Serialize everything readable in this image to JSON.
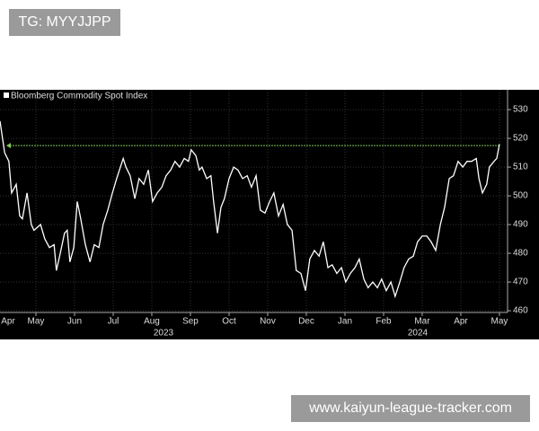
{
  "watermarks": [
    "TG: MYYJJPP",
    "www.kaiyun-league-tracker.com"
  ],
  "chart_data": {
    "type": "line",
    "background": "#000000",
    "x": [
      0.07,
      0.19,
      0.3,
      0.37,
      0.49,
      0.58,
      0.65,
      0.77,
      0.88,
      0.95,
      1.12,
      1.23,
      1.35,
      1.47,
      1.53,
      1.63,
      1.74,
      1.81,
      1.88,
      1.98,
      2.07,
      2.16,
      2.28,
      2.4,
      2.51,
      2.63,
      2.74,
      2.86,
      2.98,
      3.09,
      3.26,
      3.33,
      3.44,
      3.56,
      3.67,
      3.79,
      3.91,
      4.02,
      4.14,
      4.26,
      4.37,
      4.49,
      4.6,
      4.72,
      4.84,
      4.95,
      5.02,
      5.14,
      5.23,
      5.3,
      5.42,
      5.53,
      5.6,
      5.7,
      5.79,
      5.88,
      6.0,
      6.12,
      6.23,
      6.35,
      6.47,
      6.58,
      6.7,
      6.81,
      6.93,
      7.05,
      7.16,
      7.28,
      7.4,
      7.51,
      7.63,
      7.74,
      7.86,
      7.98,
      8.09,
      8.21,
      8.33,
      8.44,
      8.56,
      8.67,
      8.79,
      8.91,
      9.02,
      9.14,
      9.26,
      9.37,
      9.49,
      9.6,
      9.72,
      9.84,
      9.95,
      10.07,
      10.19,
      10.3,
      10.42,
      10.53,
      10.65,
      10.77,
      10.88,
      11.0,
      11.12,
      11.23,
      11.35,
      11.47,
      11.58,
      11.7,
      11.81,
      11.93,
      12.05,
      12.16,
      12.28,
      12.4,
      12.47,
      12.56,
      12.67,
      12.74,
      12.86,
      12.93,
      13.0
    ],
    "series": [
      {
        "name": "Bloomberg Commodity Spot Index",
        "color": "#ffffff",
        "values": [
          526,
          515,
          512,
          501,
          504,
          493,
          492,
          501,
          490,
          488,
          490,
          485,
          482,
          483,
          474,
          480,
          487,
          488,
          477,
          482,
          498,
          492,
          483,
          477,
          483,
          482,
          490,
          495,
          501,
          506,
          513,
          510,
          507,
          499,
          506,
          504,
          509,
          498,
          501,
          503,
          507,
          509,
          512,
          510,
          513,
          512,
          516,
          514,
          509,
          510,
          506,
          507,
          498,
          487,
          496,
          499,
          506,
          510,
          509,
          506,
          507,
          503,
          507,
          495,
          494,
          498,
          501,
          493,
          497,
          490,
          488,
          474,
          473,
          467,
          478,
          481,
          479,
          484,
          475,
          476,
          473,
          475,
          470,
          473,
          475,
          478,
          471,
          468,
          470,
          468,
          471,
          467,
          470,
          465,
          470,
          475,
          478,
          479,
          484,
          486,
          486,
          484,
          481,
          490,
          496,
          506,
          507,
          512,
          510,
          512,
          512,
          513,
          506,
          501,
          504,
          510,
          512,
          513,
          518
        ]
      }
    ],
    "reference_line": {
      "value": 517.5,
      "color": "#7ec850"
    },
    "xlim": [
      0.07,
      13.21
    ],
    "xticks": [
      {
        "value": 0,
        "label": "Apr"
      },
      {
        "value": 1,
        "label": "May"
      },
      {
        "value": 2,
        "label": "Jun"
      },
      {
        "value": 3,
        "label": "Jul"
      },
      {
        "value": 4,
        "label": "Aug"
      },
      {
        "value": 5,
        "label": "Sep"
      },
      {
        "value": 6,
        "label": "Oct"
      },
      {
        "value": 7,
        "label": "Nov"
      },
      {
        "value": 8,
        "label": "Dec"
      },
      {
        "value": 9,
        "label": "Jan"
      },
      {
        "value": 10,
        "label": "Feb"
      },
      {
        "value": 11,
        "label": "Mar"
      },
      {
        "value": 12,
        "label": "Apr"
      },
      {
        "value": 13,
        "label": "May"
      }
    ],
    "x_group_labels": [
      "2023",
      "2024"
    ],
    "ylim": [
      459.4,
      536.9
    ],
    "yticks": [
      460,
      470,
      480,
      490,
      500,
      510,
      520,
      530
    ],
    "grid": true
  }
}
